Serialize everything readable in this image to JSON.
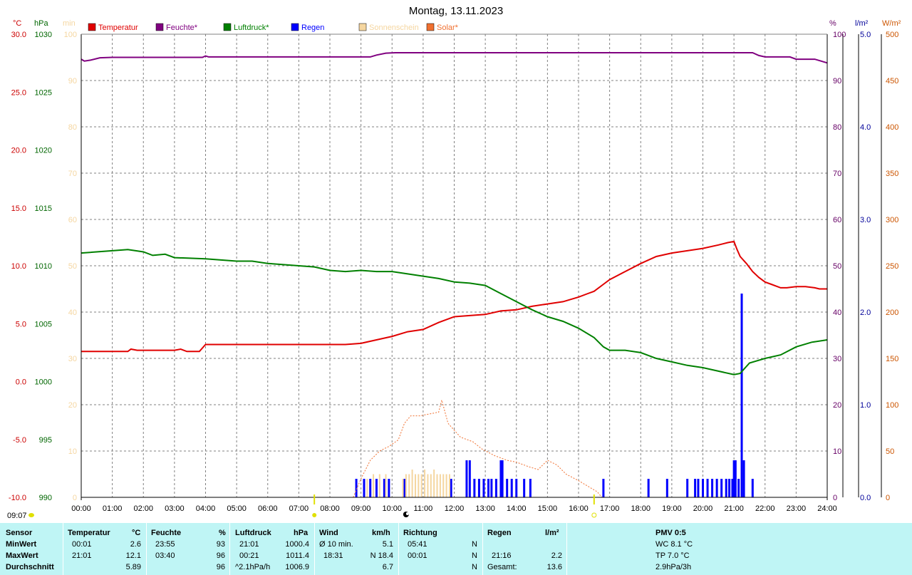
{
  "chart_data": {
    "type": "line",
    "title": "Montag, 13.11.2023",
    "x_ticks": [
      "00:00",
      "01:00",
      "02:00",
      "03:00",
      "04:00",
      "05:00",
      "06:00",
      "07:00",
      "08:00",
      "09:00",
      "10:00",
      "11:00",
      "12:00",
      "13:00",
      "14:00",
      "15:00",
      "16:00",
      "17:00",
      "18:00",
      "19:00",
      "20:00",
      "21:00",
      "22:00",
      "23:00",
      "24:00"
    ],
    "x_range_hours": [
      0,
      24
    ],
    "grid": true,
    "axes": {
      "temperature": {
        "unit": "°C",
        "range": [
          -10,
          30
        ],
        "ticks": [
          "30.0",
          "25.0",
          "20.0",
          "15.0",
          "10.0",
          "5.0",
          "0.0",
          "-5.0",
          "-10.0"
        ],
        "color": "#cc0000"
      },
      "pressure": {
        "unit": "hPa",
        "range": [
          990,
          1030
        ],
        "ticks": [
          "1030",
          "1025",
          "1020",
          "1015",
          "1010",
          "1005",
          "1000",
          "995",
          "990"
        ],
        "color": "#006600"
      },
      "sunshine": {
        "unit": "min",
        "range": [
          0,
          100
        ],
        "ticks": [
          "100",
          "90",
          "80",
          "70",
          "60",
          "50",
          "40",
          "30",
          "20",
          "10",
          "0"
        ],
        "color": "#f5d6a0"
      },
      "humidity": {
        "unit": "%",
        "range": [
          0,
          100
        ],
        "ticks": [
          "100",
          "90",
          "80",
          "70",
          "60",
          "50",
          "40",
          "30",
          "20",
          "10",
          "0"
        ],
        "color": "#660066"
      },
      "rain": {
        "unit": "l/m²",
        "range": [
          0,
          5
        ],
        "ticks": [
          "5.0",
          "4.0",
          "3.0",
          "2.0",
          "1.0",
          "0.0"
        ],
        "color": "#000099"
      },
      "solar": {
        "unit": "W/m²",
        "range": [
          0,
          500
        ],
        "ticks": [
          "500",
          "450",
          "400",
          "350",
          "300",
          "250",
          "200",
          "150",
          "100",
          "50",
          "0"
        ],
        "color": "#cc5500"
      }
    },
    "legend": [
      {
        "label": "Temperatur",
        "color": "#e00000"
      },
      {
        "label": "Feuchte*",
        "color": "#800080"
      },
      {
        "label": "Luftdruck*",
        "color": "#008000"
      },
      {
        "label": "Regen",
        "color": "#0000ff"
      },
      {
        "label": "Sonnenschein",
        "color": "#f5d6a0"
      },
      {
        "label": "Solar*",
        "color": "#f07030"
      }
    ],
    "series": [
      {
        "name": "Temperatur",
        "color": "#e00000",
        "axis": "temperature",
        "points": [
          [
            0,
            2.6
          ],
          [
            1.5,
            2.6
          ],
          [
            1.6,
            2.8
          ],
          [
            1.8,
            2.7
          ],
          [
            3.0,
            2.7
          ],
          [
            3.2,
            2.8
          ],
          [
            3.4,
            2.6
          ],
          [
            3.8,
            2.6
          ],
          [
            4.0,
            3.2
          ],
          [
            8.5,
            3.2
          ],
          [
            9.0,
            3.3
          ],
          [
            9.5,
            3.6
          ],
          [
            10.0,
            3.9
          ],
          [
            10.5,
            4.3
          ],
          [
            11.0,
            4.5
          ],
          [
            11.5,
            5.1
          ],
          [
            12.0,
            5.6
          ],
          [
            12.5,
            5.7
          ],
          [
            13.0,
            5.8
          ],
          [
            13.5,
            6.1
          ],
          [
            14.0,
            6.2
          ],
          [
            14.5,
            6.5
          ],
          [
            15.0,
            6.7
          ],
          [
            15.5,
            6.9
          ],
          [
            16.0,
            7.3
          ],
          [
            16.3,
            7.6
          ],
          [
            16.5,
            7.8
          ],
          [
            16.8,
            8.4
          ],
          [
            17.0,
            8.8
          ],
          [
            17.5,
            9.5
          ],
          [
            18.0,
            10.2
          ],
          [
            18.5,
            10.8
          ],
          [
            19.0,
            11.1
          ],
          [
            19.5,
            11.3
          ],
          [
            20.0,
            11.5
          ],
          [
            20.5,
            11.8
          ],
          [
            20.8,
            12.0
          ],
          [
            21.0,
            12.1
          ],
          [
            21.1,
            11.4
          ],
          [
            21.2,
            10.8
          ],
          [
            21.4,
            10.2
          ],
          [
            21.6,
            9.5
          ],
          [
            21.8,
            9.0
          ],
          [
            22.0,
            8.6
          ],
          [
            22.2,
            8.4
          ],
          [
            22.5,
            8.1
          ],
          [
            22.7,
            8.1
          ],
          [
            23.0,
            8.2
          ],
          [
            23.3,
            8.2
          ],
          [
            23.6,
            8.1
          ],
          [
            23.75,
            8.0
          ],
          [
            24.0,
            8.0
          ]
        ]
      },
      {
        "name": "Feuchte*",
        "color": "#800080",
        "axis": "humidity",
        "points": [
          [
            0.0,
            94.6
          ],
          [
            0.1,
            94.2
          ],
          [
            0.3,
            94.4
          ],
          [
            0.6,
            94.9
          ],
          [
            1.0,
            95.0
          ],
          [
            3.9,
            95.0
          ],
          [
            4.0,
            95.3
          ],
          [
            4.1,
            95.1
          ],
          [
            5.0,
            95.1
          ],
          [
            9.3,
            95.1
          ],
          [
            9.5,
            95.5
          ],
          [
            9.8,
            95.9
          ],
          [
            10.1,
            96.0
          ],
          [
            21.6,
            96.0
          ],
          [
            21.8,
            95.4
          ],
          [
            22.0,
            95.1
          ],
          [
            22.8,
            95.1
          ],
          [
            23.0,
            94.6
          ],
          [
            23.6,
            94.6
          ],
          [
            23.8,
            94.2
          ],
          [
            24.0,
            93.8
          ]
        ]
      },
      {
        "name": "Luftdruck*",
        "color": "#008000",
        "axis": "pressure",
        "points": [
          [
            0,
            1011.1
          ],
          [
            1.0,
            1011.3
          ],
          [
            1.5,
            1011.4
          ],
          [
            2.0,
            1011.2
          ],
          [
            2.3,
            1010.9
          ],
          [
            2.7,
            1011.0
          ],
          [
            3.0,
            1010.7
          ],
          [
            4.0,
            1010.6
          ],
          [
            4.5,
            1010.5
          ],
          [
            5.0,
            1010.4
          ],
          [
            5.5,
            1010.4
          ],
          [
            6.0,
            1010.2
          ],
          [
            6.5,
            1010.1
          ],
          [
            7.0,
            1010.0
          ],
          [
            7.5,
            1009.9
          ],
          [
            8.0,
            1009.6
          ],
          [
            8.5,
            1009.5
          ],
          [
            9.0,
            1009.6
          ],
          [
            9.5,
            1009.5
          ],
          [
            10.0,
            1009.5
          ],
          [
            10.5,
            1009.3
          ],
          [
            11.0,
            1009.1
          ],
          [
            11.5,
            1008.9
          ],
          [
            12.0,
            1008.6
          ],
          [
            12.5,
            1008.5
          ],
          [
            13.0,
            1008.3
          ],
          [
            13.5,
            1007.6
          ],
          [
            14.0,
            1006.9
          ],
          [
            14.5,
            1006.2
          ],
          [
            15.0,
            1005.6
          ],
          [
            15.5,
            1005.2
          ],
          [
            16.0,
            1004.6
          ],
          [
            16.5,
            1003.8
          ],
          [
            16.8,
            1003.0
          ],
          [
            17.0,
            1002.7
          ],
          [
            17.5,
            1002.7
          ],
          [
            18.0,
            1002.5
          ],
          [
            18.5,
            1002.0
          ],
          [
            19.0,
            1001.7
          ],
          [
            19.5,
            1001.4
          ],
          [
            20.0,
            1001.2
          ],
          [
            20.5,
            1000.9
          ],
          [
            21.0,
            1000.6
          ],
          [
            21.2,
            1000.7
          ],
          [
            21.5,
            1001.6
          ],
          [
            22.0,
            1002.0
          ],
          [
            22.5,
            1002.3
          ],
          [
            23.0,
            1003.0
          ],
          [
            23.5,
            1003.4
          ],
          [
            24.0,
            1003.6
          ]
        ]
      },
      {
        "name": "Regen",
        "color": "#0000ff",
        "axis": "rain",
        "type": "bar",
        "points": [
          [
            8.85,
            0.2
          ],
          [
            9.1,
            0.2
          ],
          [
            9.3,
            0.2
          ],
          [
            9.5,
            0.2
          ],
          [
            9.75,
            0.2
          ],
          [
            9.9,
            0.2
          ],
          [
            10.4,
            0.2
          ],
          [
            11.9,
            0.2
          ],
          [
            12.4,
            0.4
          ],
          [
            12.5,
            0.4
          ],
          [
            12.65,
            0.2
          ],
          [
            12.8,
            0.2
          ],
          [
            12.95,
            0.2
          ],
          [
            13.1,
            0.2
          ],
          [
            13.2,
            0.2
          ],
          [
            13.35,
            0.2
          ],
          [
            13.5,
            0.4
          ],
          [
            13.55,
            0.4
          ],
          [
            13.7,
            0.2
          ],
          [
            13.85,
            0.2
          ],
          [
            14.0,
            0.2
          ],
          [
            14.25,
            0.2
          ],
          [
            14.45,
            0.2
          ],
          [
            16.8,
            0.2
          ],
          [
            18.25,
            0.2
          ],
          [
            18.85,
            0.2
          ],
          [
            19.5,
            0.2
          ],
          [
            19.75,
            0.2
          ],
          [
            19.85,
            0.2
          ],
          [
            20.0,
            0.2
          ],
          [
            20.15,
            0.2
          ],
          [
            20.3,
            0.2
          ],
          [
            20.45,
            0.2
          ],
          [
            20.6,
            0.2
          ],
          [
            20.75,
            0.2
          ],
          [
            20.85,
            0.2
          ],
          [
            20.95,
            0.2
          ],
          [
            21.0,
            0.4
          ],
          [
            21.05,
            0.4
          ],
          [
            21.15,
            0.2
          ],
          [
            21.25,
            2.2
          ],
          [
            21.32,
            0.4
          ],
          [
            21.6,
            0.2
          ]
        ]
      },
      {
        "name": "Sonnenschein",
        "color": "#f5d6a0",
        "axis": "sunshine",
        "type": "bar",
        "points": [
          [
            9.2,
            4
          ],
          [
            9.4,
            5
          ],
          [
            9.6,
            5
          ],
          [
            9.8,
            5
          ],
          [
            10.35,
            4
          ],
          [
            10.45,
            5
          ],
          [
            10.55,
            5
          ],
          [
            10.65,
            6
          ],
          [
            10.75,
            5
          ],
          [
            10.85,
            5
          ],
          [
            10.95,
            5
          ],
          [
            11.05,
            6
          ],
          [
            11.15,
            5
          ],
          [
            11.25,
            5
          ],
          [
            11.35,
            6
          ],
          [
            11.45,
            5
          ],
          [
            11.55,
            5
          ],
          [
            11.65,
            5
          ],
          [
            11.75,
            5
          ],
          [
            11.85,
            5
          ]
        ]
      },
      {
        "name": "Solar*",
        "color": "#f07030",
        "axis": "solar",
        "points": [
          [
            8.75,
            0
          ],
          [
            9.0,
            20
          ],
          [
            9.3,
            40
          ],
          [
            9.6,
            50
          ],
          [
            9.9,
            55
          ],
          [
            10.2,
            62
          ],
          [
            10.4,
            80
          ],
          [
            10.6,
            88
          ],
          [
            10.9,
            88
          ],
          [
            11.2,
            90
          ],
          [
            11.5,
            92
          ],
          [
            11.6,
            105
          ],
          [
            11.8,
            80
          ],
          [
            12.2,
            65
          ],
          [
            12.6,
            60
          ],
          [
            12.9,
            52
          ],
          [
            13.3,
            45
          ],
          [
            13.7,
            40
          ],
          [
            14.0,
            38
          ],
          [
            14.4,
            33
          ],
          [
            14.7,
            30
          ],
          [
            15.0,
            40
          ],
          [
            15.3,
            35
          ],
          [
            15.6,
            25
          ],
          [
            16.0,
            18
          ],
          [
            16.3,
            12
          ],
          [
            16.6,
            6
          ],
          [
            16.75,
            0
          ]
        ]
      }
    ],
    "markers": {
      "sunrise_label": "09:07",
      "left_marker_label": "09:07",
      "moon_icon_hour": 10.45
    }
  },
  "table": {
    "headers": {
      "sensor": "Sensor",
      "temp": "Temperatur",
      "temp_unit": "°C",
      "hum": "Feuchte",
      "hum_unit": "%",
      "press": "Luftdruck",
      "press_unit": "hPa",
      "wind": "Wind",
      "wind_unit": "km/h",
      "dir": "Richtung",
      "rain": "Regen",
      "rain_unit": "l/m²",
      "pmv": "PMV 0:5"
    },
    "rows": {
      "min_label": "MinWert",
      "max_label": "MaxWert",
      "avg_label": "Durchschnitt"
    },
    "temp": {
      "min_time": "00:01",
      "min_val": "2.6",
      "max_time": "21:01",
      "max_val": "12.1",
      "avg": "5.89"
    },
    "hum": {
      "min_time": "23:55",
      "min_val": "93",
      "max_time": "03:40",
      "max_val": "96",
      "avg": "96"
    },
    "press": {
      "min_time": "21:01",
      "min_val": "1000.4",
      "max_time": "00:21",
      "max_val": "1011.4",
      "trend_label": "^2.1hPa/h",
      "avg": "1006.9"
    },
    "wind": {
      "avg_label": "Ø 10 min.",
      "avg_val": "5.1",
      "max_time": "18:31",
      "max_val": "N 18.4",
      "avg": "6.7"
    },
    "dir": {
      "min_time": "05:41",
      "min_dir": "N",
      "max_time": "00:01",
      "max_dir": "N",
      "avg_dir": "N"
    },
    "rain": {
      "max_time": "21:16",
      "max_val": "2.2",
      "total_label": "Gesamt:",
      "total_val": "13.6"
    },
    "pmv": {
      "wc": "WC 8.1 °C",
      "tp": "TP 7.0 °C",
      "trend": "2.9hPa/3h"
    }
  }
}
